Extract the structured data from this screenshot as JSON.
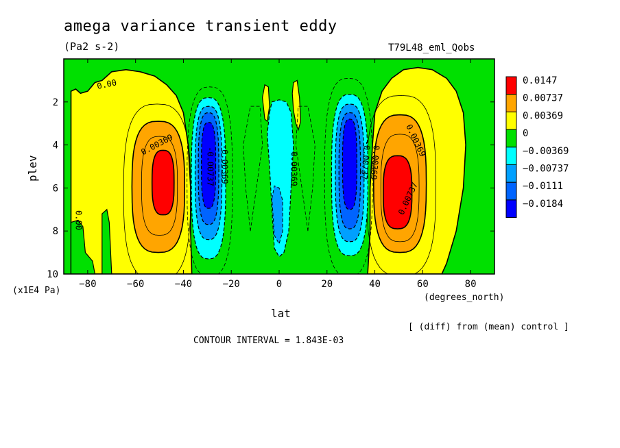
{
  "header": {
    "title": "amega variance transient eddy",
    "units": "(Pa2 s-2)",
    "run_id": "T79L48_eml_Qobs"
  },
  "footer": {
    "diff_note": "[ (diff) from (mean) control ]",
    "contour_interval": "CONTOUR INTERVAL = 1.843E-03"
  },
  "chart_data": {
    "type": "heatmap",
    "title": "amega variance transient eddy",
    "subtitle": "(Pa2 s-2)",
    "xlabel": "lat",
    "x_units": "(degrees_north)",
    "ylabel": "plev",
    "y_units": "(x1E4 Pa)",
    "xlim": [
      -90,
      90
    ],
    "ylim": [
      10,
      0
    ],
    "x_ticks": [
      -80,
      -60,
      -40,
      -20,
      0,
      20,
      40,
      60,
      80
    ],
    "x_tick_labels": [
      "-80",
      "-60",
      "-40",
      "-20",
      "0",
      "20",
      "40",
      "60",
      "80"
    ],
    "y_ticks": [
      2,
      4,
      6,
      8,
      10
    ],
    "y_tick_labels": [
      "2",
      "4",
      "6",
      "8",
      "10"
    ],
    "contour_interval": 0.001843,
    "legend": {
      "placement": "right",
      "levels": [
        {
          "label": "0.0147",
          "color": "#ff0000"
        },
        {
          "label": "0.00737",
          "color": "#ffa500"
        },
        {
          "label": "0.00369",
          "color": "#ffff00"
        },
        {
          "label": "0",
          "color": "#00e000"
        },
        {
          "label": "−0.00369",
          "color": "#00ffff"
        },
        {
          "label": "−0.00737",
          "color": "#00a0ff"
        },
        {
          "label": "−0.0111",
          "color": "#0064ff"
        },
        {
          "label": "−0.0184",
          "color": "#0000ff"
        }
      ]
    },
    "contour_labels": [
      {
        "text": "0.00",
        "lat": -72,
        "plev": 1.2,
        "angle": -12
      },
      {
        "text": "0.00369",
        "lat": -51,
        "plev": 4.0,
        "angle": -28
      },
      {
        "text": "-0.00369",
        "lat": -23,
        "plev": 4.9,
        "angle": 90
      },
      {
        "text": "-0.00737",
        "lat": -29,
        "plev": 5.0,
        "angle": 90
      },
      {
        "text": "-0.00369",
        "lat": 6,
        "plev": 5.0,
        "angle": 90
      },
      {
        "text": "0.00",
        "lat": -84,
        "plev": 7.5,
        "angle": 90
      },
      {
        "text": "-0.00737",
        "lat": 36,
        "plev": 4.7,
        "angle": 95
      },
      {
        "text": "-0.00369",
        "lat": 40,
        "plev": 4.7,
        "angle": 95
      },
      {
        "text": "0.00369",
        "lat": 57,
        "plev": 3.8,
        "angle": 65
      },
      {
        "text": "0.00737",
        "lat": 54,
        "plev": 6.5,
        "angle": -65
      }
    ],
    "features": [
      {
        "kind": "max",
        "lat_range": [
          -50,
          -45
        ],
        "plev_range": [
          4.3,
          7.2
        ],
        "value_range": "0.00737 to 0.0147"
      },
      {
        "kind": "max",
        "lat_range": [
          45,
          56
        ],
        "plev_range": [
          4.5,
          7.8
        ],
        "value_range": "0.00737 to 0.0147"
      },
      {
        "kind": "min",
        "lat_range": [
          -33,
          -27
        ],
        "plev_range": [
          3.0,
          7.0
        ],
        "value_range": "-0.0111 to -0.0184"
      },
      {
        "kind": "min",
        "lat_range": [
          27,
          33
        ],
        "plev_range": [
          2.8,
          6.8
        ],
        "value_range": "-0.0111 to -0.0184"
      }
    ]
  }
}
